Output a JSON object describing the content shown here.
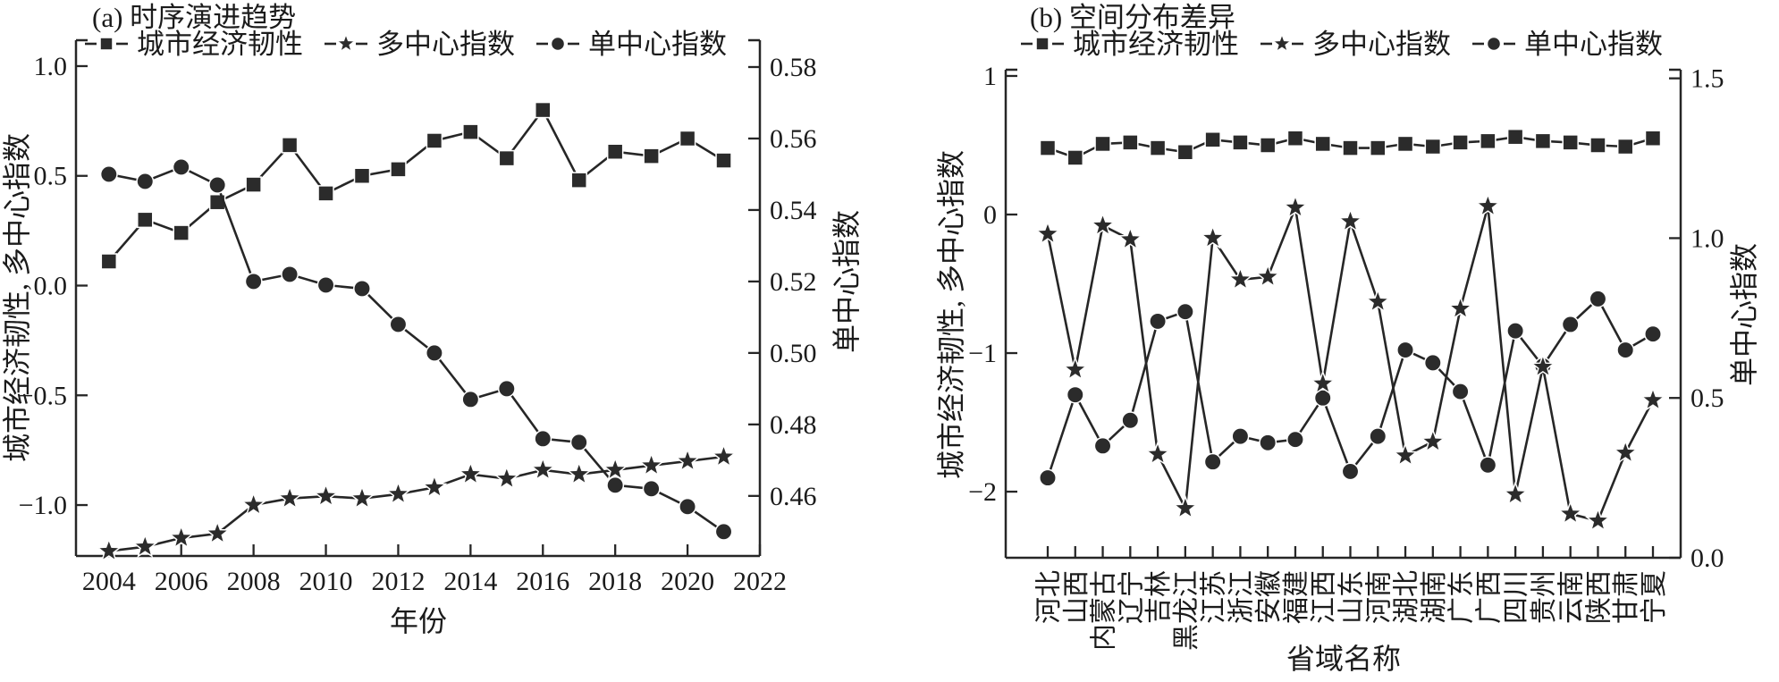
{
  "figure": {
    "background": "#ffffff",
    "ink_color": "#262626",
    "marker_fill": "#2b2b2b"
  },
  "chart_data": [
    {
      "type": "line",
      "title": "(a) 时序演进趋势",
      "grid": false,
      "legend_position": "top",
      "x": {
        "label": "年份",
        "values": [
          2004,
          2005,
          2006,
          2007,
          2008,
          2009,
          2010,
          2011,
          2012,
          2013,
          2014,
          2015,
          2016,
          2017,
          2018,
          2019,
          2020,
          2021
        ],
        "tick_values": [
          2004,
          2006,
          2008,
          2010,
          2012,
          2014,
          2016,
          2018,
          2020,
          2022
        ],
        "tick_labels": [
          "2004",
          "2006",
          "2008",
          "2010",
          "2012",
          "2014",
          "2016",
          "2018",
          "2020",
          "2022"
        ],
        "range": [
          2003.09,
          2022.0
        ]
      },
      "y_left": {
        "label": "城市经济韧性, 多中心指数",
        "tick_values": [
          1.0,
          0.5,
          0.0,
          -0.5,
          -1.0
        ],
        "tick_labels": [
          "1.0",
          "0.5",
          "0.0",
          "−0.5",
          "−1.0"
        ],
        "range": [
          -1.232,
          1.118
        ]
      },
      "y_right": {
        "label": "单中心指数",
        "tick_values": [
          0.58,
          0.56,
          0.54,
          0.52,
          0.5,
          0.48,
          0.46
        ],
        "tick_labels": [
          "0.58",
          "0.56",
          "0.54",
          "0.52",
          "0.50",
          "0.48",
          "0.46"
        ],
        "range": [
          0.4432,
          0.5875
        ]
      },
      "series": [
        {
          "name": "城市经济韧性",
          "marker": "square",
          "axis": "left",
          "values": [
            0.11,
            0.3,
            0.24,
            0.38,
            0.46,
            0.64,
            0.42,
            0.5,
            0.53,
            0.66,
            0.7,
            0.58,
            0.8,
            0.48,
            0.61,
            0.59,
            0.67,
            0.57
          ]
        },
        {
          "name": "多中心指数",
          "marker": "star",
          "axis": "left",
          "values": [
            -1.21,
            -1.19,
            -1.15,
            -1.13,
            -1.0,
            -0.97,
            -0.96,
            -0.97,
            -0.95,
            -0.92,
            -0.86,
            -0.88,
            -0.84,
            -0.86,
            -0.84,
            -0.82,
            -0.8,
            -0.78
          ]
        },
        {
          "name": "单中心指数",
          "marker": "circle",
          "axis": "right",
          "values": [
            0.55,
            0.548,
            0.552,
            0.547,
            0.52,
            0.522,
            0.519,
            0.518,
            0.508,
            0.5,
            0.487,
            0.49,
            0.476,
            0.475,
            0.463,
            0.462,
            0.457,
            0.45
          ]
        }
      ]
    },
    {
      "type": "line",
      "title": "(b) 空间分布差异",
      "grid": false,
      "legend_position": "top",
      "x": {
        "label": "省域名称",
        "categories": [
          "河北",
          "山西",
          "内蒙古",
          "辽宁",
          "吉林",
          "黑龙江",
          "江苏",
          "浙江",
          "安徽",
          "福建",
          "江西",
          "山东",
          "河南",
          "湖北",
          "湖南",
          "广东",
          "广西",
          "四川",
          "贵州",
          "云南",
          "陕西",
          "甘肃",
          "宁夏"
        ]
      },
      "y_left": {
        "label": "城市经济韧性, 多中心指数",
        "tick_values": [
          1,
          0,
          -1,
          -2
        ],
        "tick_labels": [
          "1",
          "0",
          "−1",
          "−2"
        ],
        "range": [
          -2.477,
          1.045
        ]
      },
      "y_right": {
        "label": "单中心指数",
        "tick_values": [
          1.5,
          1.0,
          0.5,
          0.0
        ],
        "tick_labels": [
          "1.5",
          "1.0",
          "0.5",
          "0.0"
        ],
        "range": [
          0.0,
          1.527
        ]
      },
      "series": [
        {
          "name": "城市经济韧性",
          "marker": "square",
          "axis": "left",
          "values": [
            0.48,
            0.41,
            0.51,
            0.52,
            0.48,
            0.45,
            0.54,
            0.52,
            0.5,
            0.55,
            0.51,
            0.48,
            0.48,
            0.51,
            0.49,
            0.52,
            0.53,
            0.56,
            0.53,
            0.52,
            0.5,
            0.49,
            0.55
          ]
        },
        {
          "name": "多中心指数",
          "marker": "star",
          "axis": "left",
          "values": [
            -0.14,
            -1.12,
            -0.08,
            -0.18,
            -1.73,
            -2.12,
            -0.17,
            -0.47,
            -0.45,
            0.05,
            -1.22,
            -0.05,
            -0.63,
            -1.74,
            -1.64,
            -0.68,
            0.06,
            -2.02,
            -1.1,
            -2.16,
            -2.21,
            -1.72,
            -1.34
          ]
        },
        {
          "name": "单中心指数",
          "marker": "circle",
          "axis": "right",
          "values": [
            0.25,
            0.51,
            0.35,
            0.43,
            0.74,
            0.77,
            0.3,
            0.38,
            0.36,
            0.37,
            0.5,
            0.27,
            0.38,
            0.65,
            0.61,
            0.52,
            0.29,
            0.71,
            0.6,
            0.73,
            0.81,
            0.65,
            0.7
          ]
        }
      ]
    }
  ]
}
